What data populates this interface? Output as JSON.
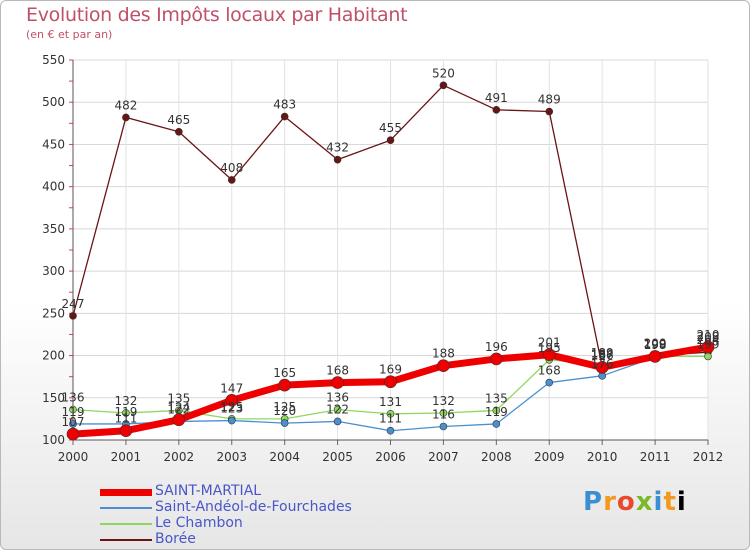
{
  "chart_data": {
    "type": "line",
    "title": "Evolution des Impôts locaux par Habitant",
    "subtitle": "(en € et par an)",
    "xlabel": "",
    "ylabel": "",
    "x": [
      "2000",
      "2001",
      "2002",
      "2003",
      "2004",
      "2005",
      "2006",
      "2007",
      "2008",
      "2009",
      "2010",
      "2011",
      "2012"
    ],
    "ylim": [
      100,
      550
    ],
    "yticks": [
      100,
      150,
      200,
      250,
      300,
      350,
      400,
      450,
      500,
      550
    ],
    "grid": true,
    "legend_position": "bottom-left",
    "series": [
      {
        "name": "SAINT-MARTIAL",
        "color": "#ee0000",
        "values": [
          107,
          111,
          124,
          147,
          165,
          168,
          169,
          188,
          196,
          201,
          186,
          199,
          210
        ]
      },
      {
        "name": "Saint-Andéol-de-Fourchades",
        "color": "#4a90d0",
        "values": [
          119,
          119,
          122,
          123,
          120,
          122,
          111,
          116,
          119,
          168,
          176,
          198,
          208
        ]
      },
      {
        "name": "Le Chambon",
        "color": "#8fd860",
        "values": [
          136,
          132,
          135,
          125,
          125,
          136,
          131,
          132,
          135,
          195,
          189,
          199,
          199
        ]
      },
      {
        "name": "Borée",
        "color": "#6b1414",
        "values": [
          247,
          482,
          465,
          408,
          483,
          432,
          455,
          520,
          491,
          489,
          187,
          200,
          204
        ]
      }
    ]
  },
  "logo": {
    "text": [
      "P",
      "r",
      "o",
      "x",
      "i",
      "t",
      "i"
    ]
  }
}
